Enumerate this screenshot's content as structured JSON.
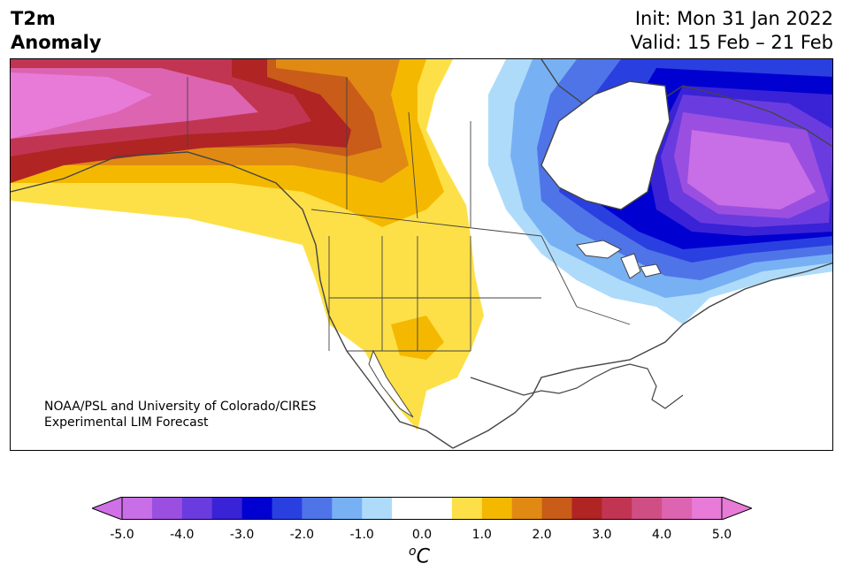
{
  "header": {
    "title_line1": "T2m",
    "title_line2": "Anomaly",
    "init": "Init: Mon 31 Jan 2022",
    "valid": "Valid: 15 Feb – 21 Feb"
  },
  "credit": {
    "line1": "NOAA/PSL and University of Colorado/CIRES",
    "line2": "Experimental LIM Forecast"
  },
  "colorbar": {
    "unit_base": "C",
    "unit_sup": "o",
    "ticks": [
      "-5.0",
      "-4.0",
      "-3.0",
      "-2.0",
      "-1.0",
      "0.0",
      "1.0",
      "2.0",
      "3.0",
      "4.0",
      "5.0"
    ],
    "bins": [
      {
        "range": "-5.0 to -4.5",
        "color": "#c86ee6"
      },
      {
        "range": "-4.5 to -4.0",
        "color": "#9b4fe0"
      },
      {
        "range": "-4.0 to -3.5",
        "color": "#6a3ce0"
      },
      {
        "range": "-3.5 to -3.0",
        "color": "#3a22d6"
      },
      {
        "range": "-3.0 to -2.5",
        "color": "#0000d0"
      },
      {
        "range": "-2.5 to -2.0",
        "color": "#2a3fe0"
      },
      {
        "range": "-2.0 to -1.5",
        "color": "#4f74e8"
      },
      {
        "range": "-1.5 to -1.0",
        "color": "#78b0f4"
      },
      {
        "range": "-1.0 to -0.5",
        "color": "#aedbfa"
      },
      {
        "range": "-0.5 to 0.0",
        "color": "#ffffff"
      },
      {
        "range": "0.0 to 0.5",
        "color": "#ffffff"
      },
      {
        "range": "0.5 to 1.0",
        "color": "#fde047"
      },
      {
        "range": "1.0 to 1.5",
        "color": "#f5b800"
      },
      {
        "range": "1.5 to 2.0",
        "color": "#e08a14"
      },
      {
        "range": "2.0 to 2.5",
        "color": "#c85c18"
      },
      {
        "range": "2.5 to 3.0",
        "color": "#b02424"
      },
      {
        "range": "3.0 to 3.5",
        "color": "#c23552"
      },
      {
        "range": "3.5 to 4.0",
        "color": "#cf4f84"
      },
      {
        "range": "4.0 to 4.5",
        "color": "#dc64b0"
      },
      {
        "range": "4.5 to 5.0",
        "color": "#e87ad8"
      }
    ],
    "extend_low_color": "#d070e8",
    "extend_high_color": "#e87ad8"
  },
  "map": {
    "region": "North America",
    "land_outline_color": "#444444"
  }
}
